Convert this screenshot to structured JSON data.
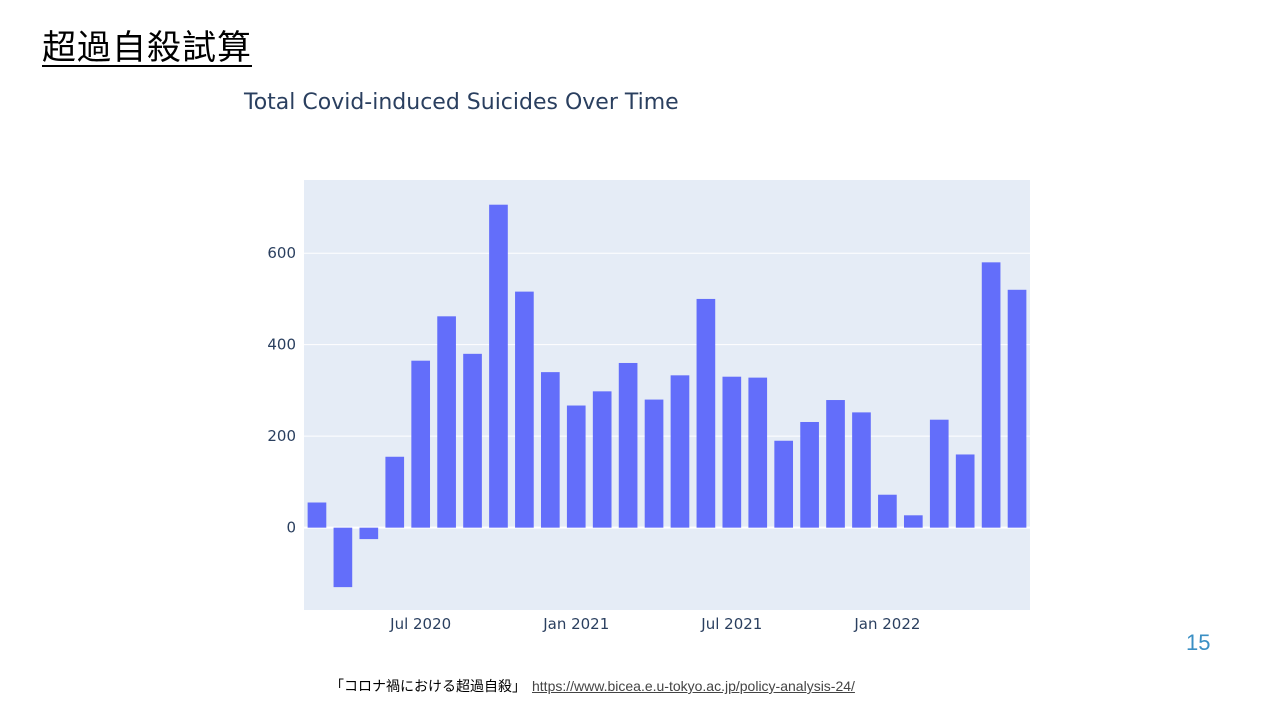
{
  "slide": {
    "title": "超過自殺試算",
    "page_number": "15",
    "footer_text": "「コロナ禍における超過自殺」",
    "footer_link": "https://www.bicea.e.u-tokyo.ac.jp/policy-analysis-24/"
  },
  "colors": {
    "bar": "#636efa",
    "plot_bg": "#e5ecf6",
    "grid": "#ffffff",
    "text": "#2a3f5f",
    "page_number": "#3a8fc4"
  },
  "chart_data": {
    "type": "bar",
    "title": "Total Covid-induced Suicides Over Time",
    "xlabel": "",
    "ylabel": "",
    "ylim": [
      -180,
      760
    ],
    "yticks": [
      0,
      200,
      400,
      600
    ],
    "grid": true,
    "categories": [
      "2020-03",
      "2020-04",
      "2020-05",
      "2020-06",
      "2020-07",
      "2020-08",
      "2020-09",
      "2020-10",
      "2020-11",
      "2020-12",
      "2021-01",
      "2021-02",
      "2021-03",
      "2021-04",
      "2021-05",
      "2021-06",
      "2021-07",
      "2021-08",
      "2021-09",
      "2021-10",
      "2021-11",
      "2021-12",
      "2022-01",
      "2022-02",
      "2022-03",
      "2022-04",
      "2022-05",
      "2022-06"
    ],
    "values": [
      55,
      -130,
      -25,
      155,
      365,
      462,
      380,
      706,
      516,
      340,
      267,
      298,
      360,
      280,
      333,
      500,
      330,
      328,
      190,
      231,
      279,
      252,
      72,
      27,
      236,
      160,
      580,
      520
    ],
    "xtick_labels": [
      {
        "label": "Jul 2020",
        "category_index": 4
      },
      {
        "label": "Jan 2021",
        "category_index": 10
      },
      {
        "label": "Jul 2021",
        "category_index": 16
      },
      {
        "label": "Jan 2022",
        "category_index": 22
      }
    ]
  }
}
